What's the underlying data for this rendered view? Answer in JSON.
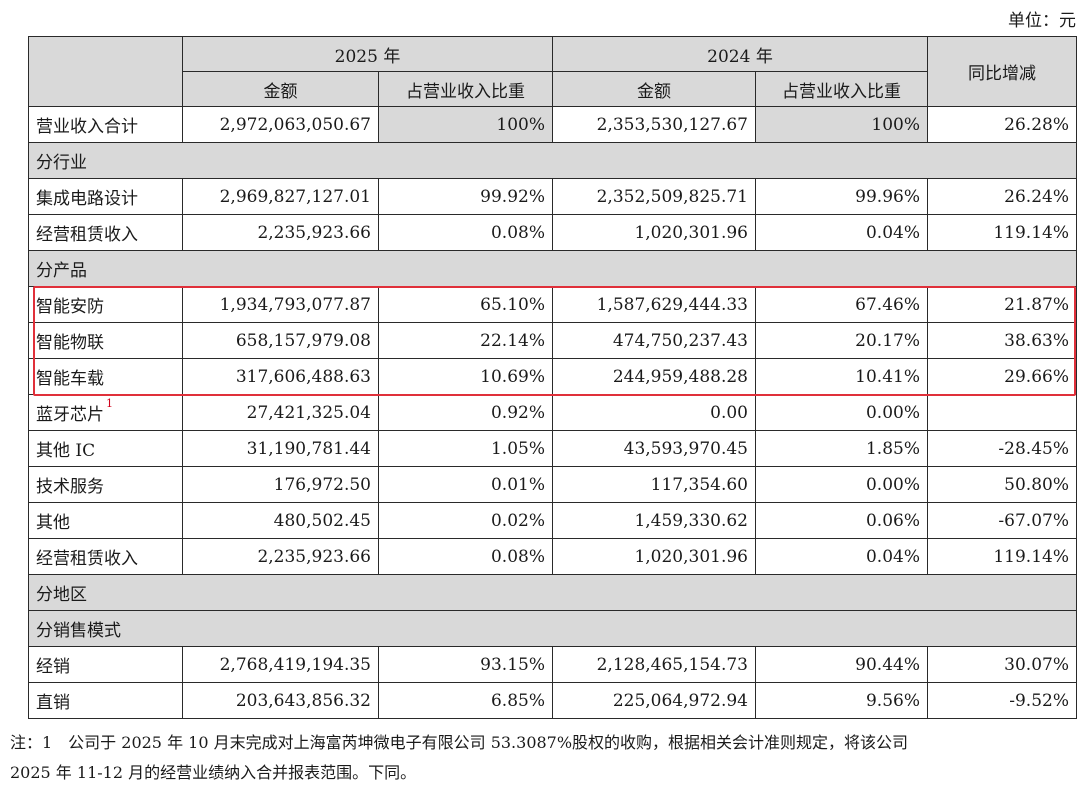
{
  "unit_label": "单位：元",
  "header": {
    "year_2025": "2025 年",
    "year_2024": "2024 年",
    "amount": "金额",
    "ratio": "占营业收入比重",
    "yoy": "同比增减"
  },
  "total": {
    "label": "营业收入合计",
    "a2025": "2,972,063,050.67",
    "r2025": "100%",
    "a2024": "2,353,530,127.67",
    "r2024": "100%",
    "yoy": "26.28%"
  },
  "sections": {
    "industry": "分行业",
    "product": "分产品",
    "region": "分地区",
    "sales": "分销售模式"
  },
  "industry_rows": [
    {
      "label": "集成电路设计",
      "a2025": "2,969,827,127.01",
      "r2025": "99.92%",
      "a2024": "2,352,509,825.71",
      "r2024": "99.96%",
      "yoy": "26.24%"
    },
    {
      "label": "经营租赁收入",
      "a2025": "2,235,923.66",
      "r2025": "0.08%",
      "a2024": "1,020,301.96",
      "r2024": "0.04%",
      "yoy": "119.14%"
    }
  ],
  "product_rows": [
    {
      "label": "智能安防",
      "a2025": "1,934,793,077.87",
      "r2025": "65.10%",
      "a2024": "1,587,629,444.33",
      "r2024": "67.46%",
      "yoy": "21.87%"
    },
    {
      "label": "智能物联",
      "a2025": "658,157,979.08",
      "r2025": "22.14%",
      "a2024": "474,750,237.43",
      "r2024": "20.17%",
      "yoy": "38.63%"
    },
    {
      "label": "智能车载",
      "a2025": "317,606,488.63",
      "r2025": "10.69%",
      "a2024": "244,959,488.28",
      "r2024": "10.41%",
      "yoy": "29.66%"
    },
    {
      "label": "蓝牙芯片",
      "note": "1",
      "a2025": "27,421,325.04",
      "r2025": "0.92%",
      "a2024": "0.00",
      "r2024": "0.00%",
      "yoy": ""
    },
    {
      "label": "其他 IC",
      "a2025": "31,190,781.44",
      "r2025": "1.05%",
      "a2024": "43,593,970.45",
      "r2024": "1.85%",
      "yoy": "-28.45%"
    },
    {
      "label": "技术服务",
      "a2025": "176,972.50",
      "r2025": "0.01%",
      "a2024": "117,354.60",
      "r2024": "0.00%",
      "yoy": "50.80%"
    },
    {
      "label": "其他",
      "a2025": "480,502.45",
      "r2025": "0.02%",
      "a2024": "1,459,330.62",
      "r2024": "0.06%",
      "yoy": "-67.07%"
    },
    {
      "label": "经营租赁收入",
      "a2025": "2,235,923.66",
      "r2025": "0.08%",
      "a2024": "1,020,301.96",
      "r2024": "0.04%",
      "yoy": "119.14%"
    }
  ],
  "sales_rows": [
    {
      "label": "经销",
      "a2025": "2,768,419,194.35",
      "r2025": "93.15%",
      "a2024": "2,128,465,154.73",
      "r2024": "90.44%",
      "yoy": "30.07%"
    },
    {
      "label": "直销",
      "a2025": "203,643,856.32",
      "r2025": "6.85%",
      "a2024": "225,064,972.94",
      "r2024": "9.56%",
      "yoy": "-9.52%"
    }
  ],
  "footnote": {
    "line1": "注：1　公司于 2025 年 10 月末完成对上海富芮坤微电子有限公司 53.3087%股权的收购，根据相关会计准则规定，将该公司",
    "line2": "2025 年 11-12 月的经营业绩纳入合并报表范围。下同。"
  },
  "colors": {
    "header_gray": "#d9d9d9",
    "highlight_red": "#e0303a",
    "footnote_marker": "#d0021b"
  }
}
